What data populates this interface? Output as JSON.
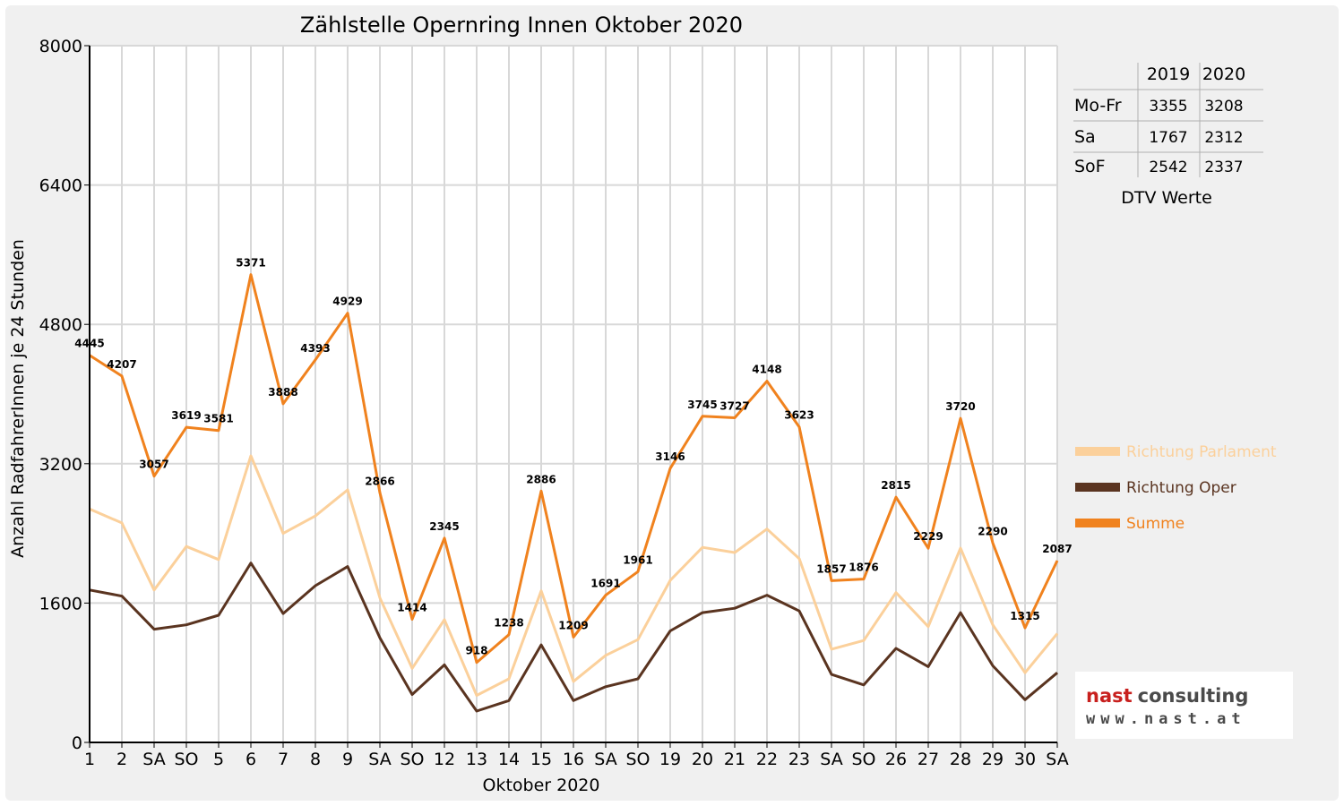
{
  "chart_data": {
    "type": "line",
    "title": "Zählstelle Opernring Innen Oktober 2020",
    "xlabel": "Oktober 2020",
    "ylabel": "Anzahl RadfahrerInnen je 24 Stunden",
    "ylim": [
      0,
      8000
    ],
    "yticks": [
      "0",
      "1600",
      "3200",
      "4800",
      "6400",
      "8000"
    ],
    "categories": [
      "1",
      "2",
      "SA",
      "SO",
      "5",
      "6",
      "7",
      "8",
      "9",
      "SA",
      "SO",
      "12",
      "13",
      "14",
      "15",
      "16",
      "SA",
      "SO",
      "19",
      "20",
      "21",
      "22",
      "23",
      "SA",
      "SO",
      "26",
      "27",
      "28",
      "29",
      "30",
      "SA"
    ],
    "red_categories": [
      3,
      10,
      17,
      24,
      25
    ],
    "grid": true,
    "legend_position": "right",
    "series": [
      {
        "name": "Richtung Parlament",
        "color": "#fbd09b",
        "values": [
          2680,
          2520,
          1750,
          2250,
          2100,
          3290,
          2400,
          2600,
          2900,
          1660,
          850,
          1410,
          540,
          730,
          1740,
          700,
          1000,
          1180,
          1860,
          2240,
          2180,
          2450,
          2110,
          1070,
          1170,
          1720,
          1330,
          2230,
          1350,
          800,
          1250
        ]
      },
      {
        "name": "Richtung Oper",
        "color": "#5a3420",
        "values": [
          1750,
          1680,
          1300,
          1350,
          1460,
          2060,
          1480,
          1800,
          2020,
          1200,
          550,
          890,
          360,
          480,
          1120,
          480,
          640,
          730,
          1280,
          1490,
          1540,
          1690,
          1510,
          780,
          660,
          1080,
          870,
          1490,
          880,
          490,
          800
        ]
      },
      {
        "name": "Summe",
        "color": "#f0821e",
        "values": [
          4445,
          4207,
          3057,
          3619,
          3581,
          5371,
          3888,
          4393,
          4929,
          2866,
          1414,
          2345,
          918,
          1238,
          2886,
          1209,
          1691,
          1961,
          3146,
          3745,
          3727,
          4148,
          3623,
          1857,
          1876,
          2815,
          2229,
          3720,
          2290,
          1315,
          2087
        ]
      }
    ],
    "data_labels": [
      "4445",
      "4207",
      "3057",
      "3619",
      "3581",
      "5371",
      "3888",
      "4393",
      "4929",
      "2866",
      "1414",
      "2345",
      "918",
      "1238",
      "2886",
      "1209",
      "1691",
      "1961",
      "3146",
      "3745",
      "3727",
      "4148",
      "3623",
      "1857",
      "1876",
      "2815",
      "2229",
      "3720",
      "2290",
      "1315",
      "2087"
    ]
  },
  "dtv_table": {
    "header": [
      "2019",
      "2020"
    ],
    "rows": [
      {
        "label": "Mo-Fr",
        "v2019": "3355",
        "v2020": "3208"
      },
      {
        "label": "Sa",
        "v2019": "1767",
        "v2020": "2312"
      },
      {
        "label": "SoF",
        "v2019": "2542",
        "v2020": "2337"
      }
    ],
    "caption": "DTV Werte"
  },
  "logo": {
    "name": "nast consulting",
    "url": "www.nast.at"
  },
  "colors": {
    "label_red": "#e00000",
    "grid": "#d8d8d8"
  }
}
